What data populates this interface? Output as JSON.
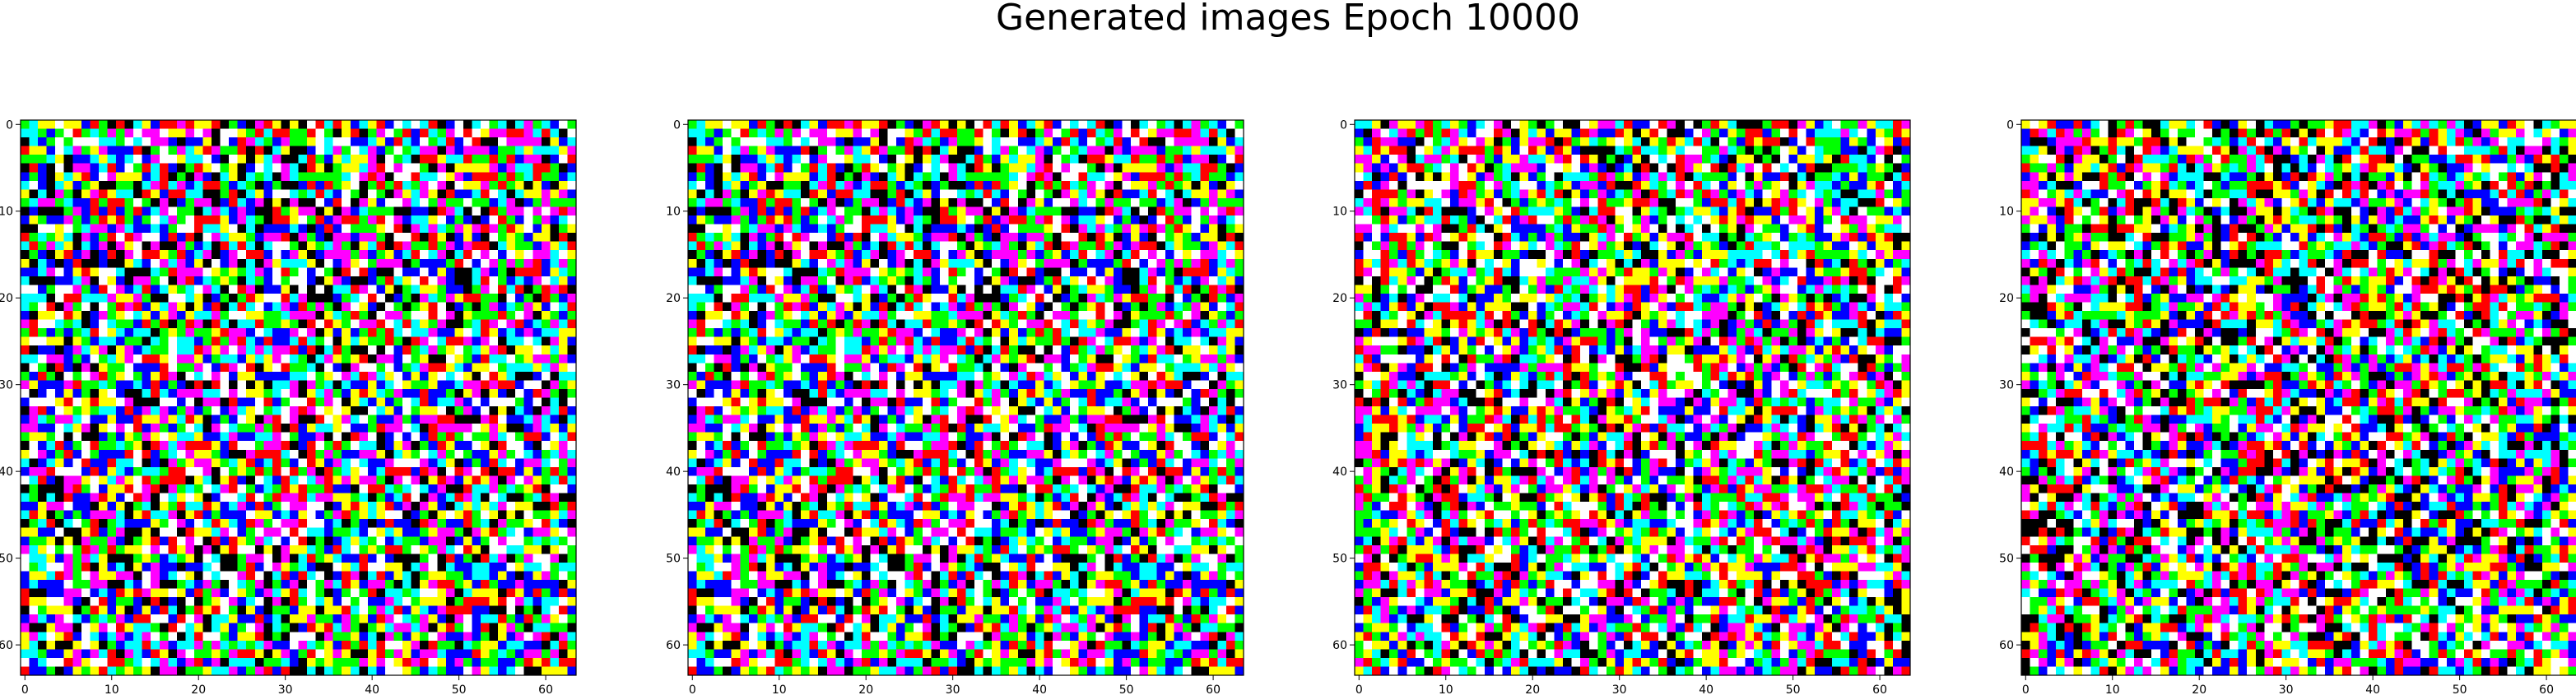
{
  "figure": {
    "title": "Generated images Epoch 10000"
  },
  "chart_data": [
    {
      "type": "heatmap",
      "title": "",
      "xlabel": "",
      "ylabel": "",
      "xlim": [
        -0.5,
        63.5
      ],
      "ylim": [
        63.5,
        -0.5
      ],
      "grid_size": [
        64,
        64
      ],
      "x_ticks": [
        0,
        10,
        20,
        30,
        40,
        50,
        60
      ],
      "y_ticks": [
        0,
        10,
        20,
        30,
        40,
        50,
        60
      ],
      "grid": false,
      "palette": [
        "#ff0000",
        "#00ff00",
        "#0000ff",
        "#ffff00",
        "#ff00ff",
        "#00ffff",
        "#ffffff",
        "#000000"
      ],
      "seed": 1
    },
    {
      "type": "heatmap",
      "title": "",
      "xlabel": "",
      "ylabel": "",
      "xlim": [
        -0.5,
        63.5
      ],
      "ylim": [
        63.5,
        -0.5
      ],
      "grid_size": [
        64,
        64
      ],
      "x_ticks": [
        0,
        10,
        20,
        30,
        40,
        50,
        60
      ],
      "y_ticks": [
        0,
        10,
        20,
        30,
        40,
        50,
        60
      ],
      "grid": false,
      "palette": [
        "#ff0000",
        "#00ff00",
        "#0000ff",
        "#ffff00",
        "#ff00ff",
        "#00ffff",
        "#ffffff",
        "#000000"
      ],
      "seed": 1
    },
    {
      "type": "heatmap",
      "title": "",
      "xlabel": "",
      "ylabel": "",
      "xlim": [
        -0.5,
        63.5
      ],
      "ylim": [
        63.5,
        -0.5
      ],
      "grid_size": [
        64,
        64
      ],
      "x_ticks": [
        0,
        10,
        20,
        30,
        40,
        50,
        60
      ],
      "y_ticks": [
        0,
        10,
        20,
        30,
        40,
        50,
        60
      ],
      "grid": false,
      "palette": [
        "#ff0000",
        "#00ff00",
        "#0000ff",
        "#ffff00",
        "#ff00ff",
        "#00ffff",
        "#ffffff",
        "#000000"
      ],
      "seed": 7
    },
    {
      "type": "heatmap",
      "title": "",
      "xlabel": "",
      "ylabel": "",
      "xlim": [
        -0.5,
        63.5
      ],
      "ylim": [
        63.5,
        -0.5
      ],
      "grid_size": [
        64,
        64
      ],
      "x_ticks": [
        0,
        10,
        20,
        30,
        40,
        50,
        60
      ],
      "y_ticks": [
        0,
        10,
        20,
        30,
        40,
        50,
        60
      ],
      "grid": false,
      "palette": [
        "#ff0000",
        "#00ff00",
        "#0000ff",
        "#ffff00",
        "#ff00ff",
        "#00ffff",
        "#ffffff",
        "#000000"
      ],
      "seed": 13
    }
  ]
}
